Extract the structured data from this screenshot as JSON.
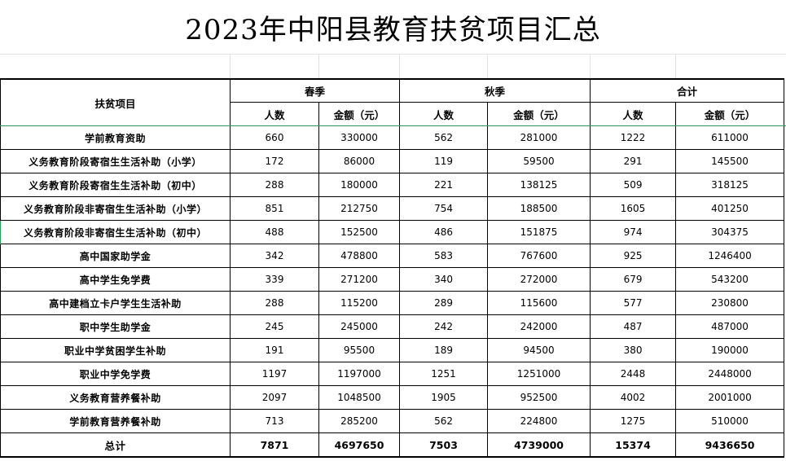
{
  "title": "2023年中阳县教育扶贫项目汇总",
  "headers": {
    "item": "扶贫项目",
    "spring": "春季",
    "autumn": "秋季",
    "total": "合计",
    "count": "人数",
    "amount": "金额（元）"
  },
  "rows": [
    {
      "item": "学前教育资助",
      "sp_n": "660",
      "sp_a": "330000",
      "au_n": "562",
      "au_a": "281000",
      "t_n": "1222",
      "t_a": "611000"
    },
    {
      "item": "义务教育阶段寄宿生生活补助（小学）",
      "sp_n": "172",
      "sp_a": "86000",
      "au_n": "119",
      "au_a": "59500",
      "t_n": "291",
      "t_a": "145500"
    },
    {
      "item": "义务教育阶段寄宿生生活补助（初中）",
      "sp_n": "288",
      "sp_a": "180000",
      "au_n": "221",
      "au_a": "138125",
      "t_n": "509",
      "t_a": "318125"
    },
    {
      "item": "义务教育阶段非寄宿生生活补助（小学）",
      "sp_n": "851",
      "sp_a": "212750",
      "au_n": "754",
      "au_a": "188500",
      "t_n": "1605",
      "t_a": "401250"
    },
    {
      "item": "义务教育阶段非寄宿生生活补助（初中）",
      "sp_n": "488",
      "sp_a": "152500",
      "au_n": "486",
      "au_a": "151875",
      "t_n": "974",
      "t_a": "304375"
    },
    {
      "item": "高中国家助学金",
      "sp_n": "342",
      "sp_a": "478800",
      "au_n": "583",
      "au_a": "767600",
      "t_n": "925",
      "t_a": "1246400"
    },
    {
      "item": "高中学生免学费",
      "sp_n": "339",
      "sp_a": "271200",
      "au_n": "340",
      "au_a": "272000",
      "t_n": "679",
      "t_a": "543200"
    },
    {
      "item": "高中建档立卡户学生生活补助",
      "sp_n": "288",
      "sp_a": "115200",
      "au_n": "289",
      "au_a": "115600",
      "t_n": "577",
      "t_a": "230800"
    },
    {
      "item": "职中学生助学金",
      "sp_n": "245",
      "sp_a": "245000",
      "au_n": "242",
      "au_a": "242000",
      "t_n": "487",
      "t_a": "487000"
    },
    {
      "item": "职业中学贫困学生补助",
      "sp_n": "191",
      "sp_a": "95500",
      "au_n": "189",
      "au_a": "94500",
      "t_n": "380",
      "t_a": "190000"
    },
    {
      "item": "职业中学免学费",
      "sp_n": "1197",
      "sp_a": "1197000",
      "au_n": "1251",
      "au_a": "1251000",
      "t_n": "2448",
      "t_a": "2448000"
    },
    {
      "item": "义务教育营养餐补助",
      "sp_n": "2097",
      "sp_a": "1048500",
      "au_n": "1905",
      "au_a": "952500",
      "t_n": "4002",
      "t_a": "2001000"
    },
    {
      "item": "学前教育营养餐补助",
      "sp_n": "713",
      "sp_a": "285200",
      "au_n": "562",
      "au_a": "224800",
      "t_n": "1275",
      "t_a": "510000"
    }
  ],
  "total": {
    "item": "总计",
    "sp_n": "7871",
    "sp_a": "4697650",
    "au_n": "7503",
    "au_a": "4739000",
    "t_n": "15374",
    "t_a": "9436650"
  }
}
